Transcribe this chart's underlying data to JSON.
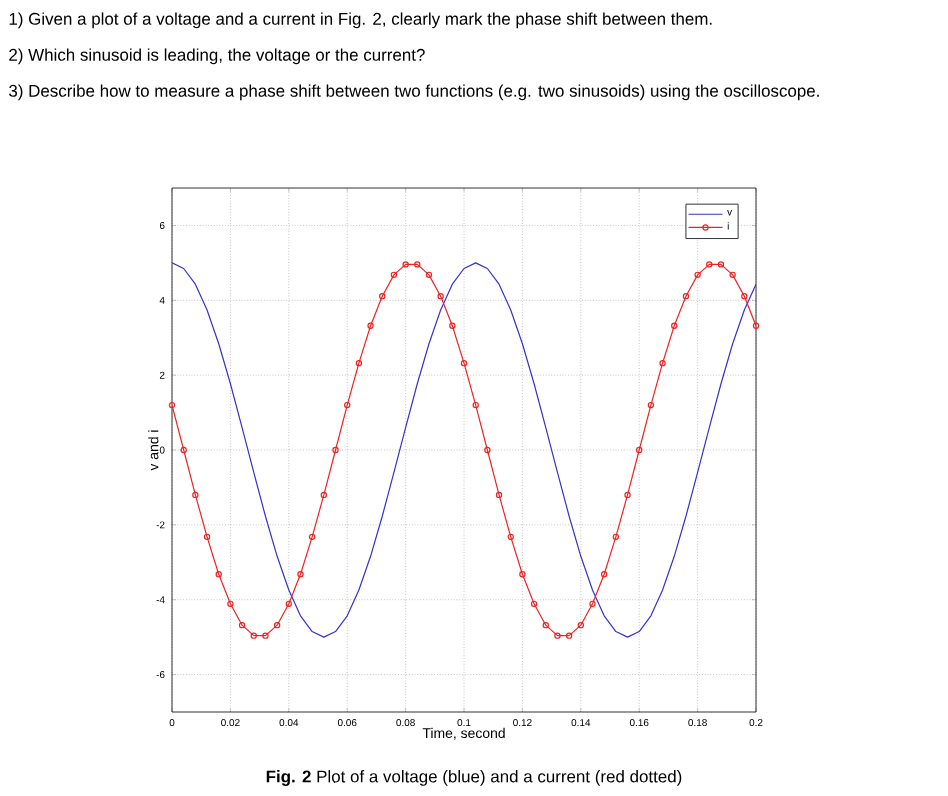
{
  "chart_data": {
    "type": "line",
    "annotations": [
      "1) Given a plot of a voltage and a current in Fig. 2, clearly mark the phase shift between them.",
      "2) Which sinusoid is leading, the voltage or the current?",
      "3) Describe how to measure a phase shift between two functions (e.g. two sinusoids) using the oscilloscope.",
      "**Fig. 2** Plot of a voltage (blue) and a current (red dotted)"
    ],
    "xlabel": "Time, second",
    "ylabel": "v and i",
    "x": [
      0,
      0.004,
      0.008,
      0.012,
      0.016,
      0.02,
      0.024,
      0.028,
      0.032,
      0.036,
      0.04,
      0.044,
      0.048,
      0.052,
      0.056,
      0.06,
      0.064,
      0.068,
      0.072,
      0.076,
      0.08,
      0.084,
      0.088,
      0.092,
      0.096,
      0.1,
      0.104,
      0.108,
      0.112,
      0.116,
      0.12,
      0.124,
      0.128,
      0.132,
      0.136,
      0.14,
      0.144,
      0.148,
      0.152,
      0.156,
      0.16,
      0.164,
      0.168,
      0.172,
      0.176,
      0.18,
      0.184,
      0.188,
      0.192,
      0.196,
      0.2
    ],
    "series": [
      {
        "name": "v",
        "color": "#3333cc",
        "marker": "none",
        "values": [
          5,
          4.85,
          4.43,
          3.74,
          2.84,
          1.77,
          0.6,
          -0.6,
          -1.77,
          -2.84,
          -3.74,
          -4.43,
          -4.85,
          -5,
          -4.85,
          -4.43,
          -3.74,
          -2.84,
          -1.77,
          -0.6,
          0.6,
          1.77,
          2.84,
          3.74,
          4.43,
          4.85,
          5,
          4.85,
          4.43,
          3.74,
          2.84,
          1.77,
          0.6,
          -0.6,
          -1.77,
          -2.84,
          -3.74,
          -4.43,
          -4.85,
          -5,
          -4.85,
          -4.43,
          -3.74,
          -2.84,
          -1.77,
          -0.6,
          0.6,
          1.77,
          2.84,
          3.74,
          4.43
        ]
      },
      {
        "name": "i",
        "color": "#ee2222",
        "marker": "circle",
        "values": [
          1.2,
          0,
          -1.2,
          -2.32,
          -3.32,
          -4.11,
          -4.68,
          -4.96,
          -4.96,
          -4.68,
          -4.11,
          -3.32,
          -2.32,
          -1.2,
          0,
          1.2,
          2.32,
          3.32,
          4.11,
          4.68,
          4.96,
          4.96,
          4.68,
          4.11,
          3.32,
          2.32,
          1.2,
          0,
          -1.2,
          -2.32,
          -3.32,
          -4.11,
          -4.68,
          -4.96,
          -4.96,
          -4.68,
          -4.11,
          -3.32,
          -2.32,
          -1.2,
          0,
          1.2,
          2.32,
          3.32,
          4.11,
          4.68,
          4.96,
          4.96,
          4.68,
          4.11,
          3.32
        ]
      }
    ],
    "xlim": [
      0,
      0.2
    ],
    "xticks": [
      0,
      0.02,
      0.04,
      0.06,
      0.08,
      0.1,
      0.12,
      0.14,
      0.16,
      0.18,
      0.2
    ],
    "ylim": [
      -7,
      7
    ],
    "yticks": [
      -6,
      -4,
      -2,
      0,
      2,
      4,
      6
    ],
    "grid": true,
    "legend": "top right"
  }
}
